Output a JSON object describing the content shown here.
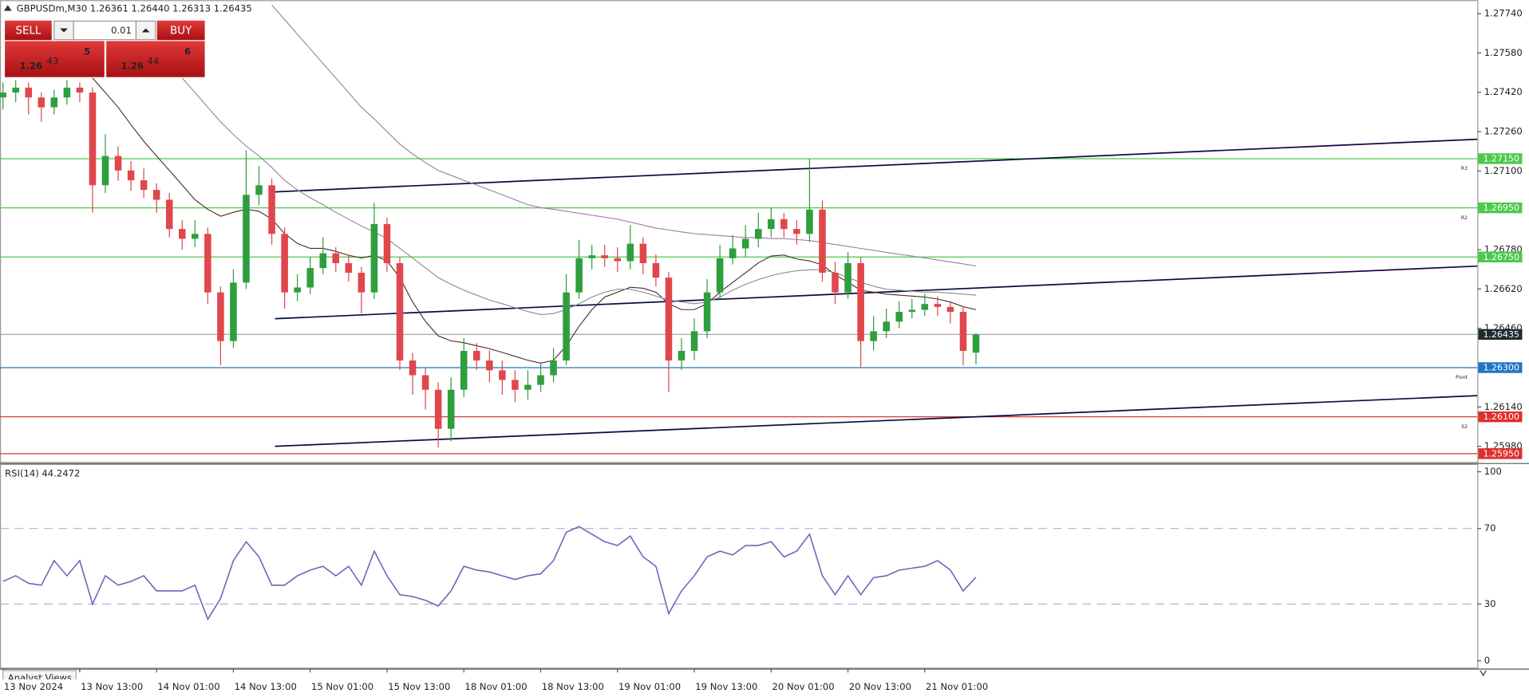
{
  "chart_data": [
    {
      "type": "candlestick",
      "title": "GBPUSDm,M30  1.26361 1.26440 1.26313 1.26435",
      "categories": [
        "13 Nov 2024",
        null,
        null,
        null,
        null,
        null,
        "13 Nov 13:00",
        null,
        null,
        null,
        null,
        null,
        "14 Nov 01:00",
        null,
        null,
        null,
        null,
        null,
        "14 Nov 13:00",
        null,
        null,
        null,
        null,
        null,
        "15 Nov 01:00",
        null,
        null,
        null,
        null,
        null,
        "15 Nov 13:00",
        null,
        null,
        null,
        null,
        null,
        "18 Nov 01:00",
        null,
        null,
        null,
        null,
        null,
        "18 Nov 13:00",
        null,
        null,
        null,
        null,
        null,
        "19 Nov 01:00",
        null,
        null,
        null,
        null,
        null,
        "19 Nov 13:00",
        null,
        null,
        null,
        null,
        null,
        "20 Nov 01:00",
        null,
        null,
        null,
        null,
        null,
        "20 Nov 13:00",
        null,
        null,
        null,
        null,
        null,
        "21 Nov 01:00",
        null,
        null,
        null,
        null
      ],
      "open": [
        1.27399,
        1.27419,
        1.27439,
        1.27399,
        1.27359,
        1.27399,
        1.27439,
        1.27419,
        1.27042,
        1.27161,
        1.27102,
        1.27062,
        1.27023,
        1.26983,
        1.26864,
        1.26824,
        1.26844,
        1.26606,
        1.26408,
        1.26646,
        1.27003,
        1.27042,
        1.26844,
        1.26606,
        1.26626,
        1.26705,
        1.26765,
        1.26725,
        1.26686,
        1.26606,
        1.26884,
        1.26725,
        1.26329,
        1.26269,
        1.2621,
        1.26051,
        1.2621,
        1.26368,
        1.26329,
        1.26289,
        1.2625,
        1.2621,
        1.2623,
        1.26269,
        1.26329,
        1.26606,
        1.26745,
        1.26757,
        1.26745,
        1.26733,
        1.26804,
        1.26725,
        1.26666,
        1.26329,
        1.26368,
        1.26448,
        1.26606,
        1.26745,
        1.26785,
        1.26824,
        1.26864,
        1.26904,
        1.26864,
        1.26844,
        1.26943,
        1.26686,
        1.26606,
        1.26725,
        1.26408,
        1.26448,
        1.26487,
        1.26527,
        1.26535,
        1.26559,
        1.26547,
        1.26527,
        1.26361
      ],
      "high": [
        1.2746,
        1.2747,
        1.2746,
        1.2742,
        1.2743,
        1.2747,
        1.2746,
        1.2744,
        1.2725,
        1.272,
        1.2714,
        1.2711,
        1.2705,
        1.2701,
        1.269,
        1.269,
        1.2687,
        1.2663,
        1.267,
        1.27185,
        1.2712,
        1.2707,
        1.2687,
        1.2668,
        1.2675,
        1.2683,
        1.2679,
        1.2676,
        1.2671,
        1.2697,
        1.2691,
        1.2675,
        1.2636,
        1.263,
        1.2624,
        1.2626,
        1.2642,
        1.264,
        1.2637,
        1.2633,
        1.2629,
        1.2629,
        1.2632,
        1.2638,
        1.2668,
        1.2682,
        1.268,
        1.268,
        1.2679,
        1.2688,
        1.2683,
        1.2676,
        1.2669,
        1.2642,
        1.265,
        1.2666,
        1.268,
        1.2684,
        1.2688,
        1.2693,
        1.2695,
        1.2693,
        1.269,
        1.2715,
        1.2698,
        1.2673,
        1.2677,
        1.2675,
        1.2651,
        1.2654,
        1.2657,
        1.2658,
        1.266,
        1.2659,
        1.2657,
        1.2655,
        1.2644
      ],
      "low": [
        1.2735,
        1.2738,
        1.2733,
        1.273,
        1.2733,
        1.2737,
        1.2738,
        1.2693,
        1.2701,
        1.2706,
        1.2702,
        1.2699,
        1.2693,
        1.2683,
        1.2678,
        1.2679,
        1.2656,
        1.2631,
        1.2638,
        1.2662,
        1.2696,
        1.268,
        1.2654,
        1.2657,
        1.266,
        1.2668,
        1.2669,
        1.2665,
        1.2652,
        1.2658,
        1.2669,
        1.2629,
        1.2619,
        1.2613,
        1.25975,
        1.26,
        1.2618,
        1.2629,
        1.2624,
        1.2619,
        1.2616,
        1.2617,
        1.262,
        1.2624,
        1.2631,
        1.2658,
        1.267,
        1.2671,
        1.2669,
        1.267,
        1.2668,
        1.2663,
        1.262,
        1.2629,
        1.2633,
        1.2642,
        1.2658,
        1.2672,
        1.2675,
        1.2679,
        1.2683,
        1.2683,
        1.268,
        1.2681,
        1.2665,
        1.2656,
        1.2658,
        1.263,
        1.2637,
        1.2642,
        1.2646,
        1.265,
        1.2651,
        1.2651,
        1.2648,
        1.2631,
        1.26313
      ],
      "close": [
        1.27419,
        1.27439,
        1.27399,
        1.27359,
        1.27399,
        1.27439,
        1.27419,
        1.27042,
        1.27161,
        1.27102,
        1.27062,
        1.27023,
        1.26983,
        1.26864,
        1.26824,
        1.26844,
        1.26606,
        1.26408,
        1.26646,
        1.27003,
        1.27042,
        1.26844,
        1.26606,
        1.26626,
        1.26705,
        1.26765,
        1.26725,
        1.26686,
        1.26606,
        1.26884,
        1.26725,
        1.26329,
        1.26269,
        1.2621,
        1.26051,
        1.2621,
        1.26368,
        1.26329,
        1.26289,
        1.2625,
        1.2621,
        1.2623,
        1.26269,
        1.26329,
        1.26606,
        1.26745,
        1.26757,
        1.26745,
        1.26733,
        1.26804,
        1.26725,
        1.26666,
        1.26329,
        1.26368,
        1.26448,
        1.26606,
        1.26745,
        1.26785,
        1.26824,
        1.26864,
        1.26904,
        1.26864,
        1.26844,
        1.26943,
        1.26686,
        1.26606,
        1.26725,
        1.26408,
        1.26448,
        1.26487,
        1.26527,
        1.26535,
        1.26559,
        1.26547,
        1.26527,
        1.26368,
        1.26435
      ],
      "up_color": "#2e9e3e",
      "down_color": "#e0474c",
      "overlays": [
        {
          "color": "#4a2a22",
          "values": [
            null,
            null,
            null,
            null,
            null,
            null,
            null,
            1.27478,
            1.27419,
            1.27359,
            1.27288,
            1.27221,
            1.27161,
            1.27102,
            1.27043,
            1.26983,
            1.26944,
            1.26916,
            1.26932,
            1.26944,
            1.26936,
            1.26904,
            1.26845,
            1.26805,
            1.26785,
            1.26785,
            1.26773,
            1.26757,
            1.26746,
            1.26757,
            1.26734,
            1.26666,
            1.26567,
            1.26488,
            1.26429,
            1.26409,
            1.26401,
            1.26389,
            1.26377,
            1.26362,
            1.26346,
            1.2633,
            1.26318,
            1.2633,
            1.26389,
            1.26468,
            1.26536,
            1.26587,
            1.26607,
            1.26627,
            1.26623,
            1.26607,
            1.2656,
            1.26536,
            1.26536,
            1.2656,
            1.26607,
            1.26647,
            1.26686,
            1.26726,
            1.26754,
            1.26758,
            1.26742,
            1.26734,
            1.26718,
            1.26678,
            1.26647,
            1.26615,
            1.26607,
            1.26599,
            1.26595,
            1.26591,
            1.26587,
            1.26579,
            1.26567,
            1.26548,
            1.26536
          ]
        },
        {
          "color": "#8a8a8a",
          "values": [
            null,
            null,
            null,
            null,
            null,
            null,
            null,
            null,
            null,
            null,
            null,
            null,
            null,
            null,
            1.27478,
            1.27419,
            1.27359,
            1.273,
            1.27248,
            1.27201,
            1.27161,
            1.27114,
            1.27062,
            1.27023,
            1.26991,
            1.26963,
            1.26932,
            1.26904,
            1.26876,
            1.26852,
            1.26825,
            1.26785,
            1.26746,
            1.26706,
            1.26666,
            1.26639,
            1.26615,
            1.26595,
            1.26575,
            1.2656,
            1.26544,
            1.26528,
            1.26516,
            1.2652,
            1.26536,
            1.2656,
            1.26587,
            1.26607,
            1.26619,
            1.26619,
            1.26607,
            1.26591,
            1.26575,
            1.26567,
            1.2656,
            1.26567,
            1.26587,
            1.26615,
            1.26639,
            1.26658,
            1.26674,
            1.26686,
            1.26694,
            1.26698,
            1.26698,
            1.26686,
            1.26666,
            1.26647,
            1.26631,
            1.26619,
            1.26615,
            1.26611,
            1.26607,
            1.26607,
            1.26603,
            1.26599,
            1.26595
          ]
        },
        {
          "color": "#9c7c9c",
          "values": [
            null,
            null,
            null,
            null,
            null,
            null,
            null,
            null,
            null,
            null,
            null,
            null,
            null,
            null,
            null,
            null,
            null,
            null,
            null,
            null,
            null,
            1.27775,
            1.27716,
            1.27656,
            1.27597,
            1.27537,
            1.27478,
            1.27419,
            1.27359,
            1.27312,
            1.2726,
            1.27209,
            1.27169,
            1.27134,
            1.27102,
            1.27082,
            1.27062,
            1.27043,
            1.27023,
            1.27003,
            1.26983,
            1.26963,
            1.26951,
            1.26944,
            1.26936,
            1.26928,
            1.2692,
            1.26912,
            1.26904,
            1.26892,
            1.2688,
            1.26868,
            1.2686,
            1.26852,
            1.26845,
            1.26841,
            1.26837,
            1.26833,
            1.26829,
            1.26829,
            1.26825,
            1.26825,
            1.26821,
            1.26817,
            1.26809,
            1.26801,
            1.26793,
            1.26785,
            1.26777,
            1.26769,
            1.26761,
            1.26754,
            1.26746,
            1.26738,
            1.2673,
            1.26722,
            1.26714
          ]
        }
      ],
      "levels": [
        {
          "value": 1.2715,
          "label": "1.27150",
          "tag": "R3",
          "color": "#4cc94c",
          "fill": "#4cc94c"
        },
        {
          "value": 1.2695,
          "label": "1.26950",
          "tag": "R2",
          "color": "#4cc94c",
          "fill": "#4cc94c"
        },
        {
          "value": 1.2675,
          "label": "1.26750",
          "color": "#4cc94c",
          "fill": "#4cc94c"
        },
        {
          "value": 1.26435,
          "label": "1.26435",
          "color": "#a8a8a8",
          "fill": "#1f2a30"
        },
        {
          "value": 1.263,
          "label": "1.26300",
          "tag": "Pivot",
          "color": "#1f74c4",
          "fill": "#1f74c4"
        },
        {
          "value": 1.261,
          "label": "1.26100",
          "tag": "S2",
          "color": "#d03a3a",
          "fill": "#e0302e"
        },
        {
          "value": 1.2595,
          "label": "1.25950",
          "color": "#d03a3a",
          "fill": "#e0302e"
        }
      ],
      "trendlines": [
        {
          "values": [
            1.27015,
            1.27229
          ]
        },
        {
          "values": [
            1.26499,
            1.26713
          ]
        },
        {
          "values": [
            1.2598,
            1.26186
          ]
        }
      ],
      "trendline_color": "#0a0a40",
      "ylim": [
        1.25916,
        1.27795
      ],
      "yticks": [
        {
          "value": 1.2774,
          "label": "1.27740"
        },
        {
          "value": 1.2758,
          "label": "1.27580"
        },
        {
          "value": 1.2742,
          "label": "1.27420"
        },
        {
          "value": 1.2726,
          "label": "1.27260"
        },
        {
          "value": 1.271,
          "label": "1.27100"
        },
        {
          "value": 1.2678,
          "label": "1.26780"
        },
        {
          "value": 1.2662,
          "label": "1.26620"
        },
        {
          "value": 1.2646,
          "label": "1.26460"
        },
        {
          "value": 1.2614,
          "label": "1.26140"
        },
        {
          "value": 1.2598,
          "label": "1.25980"
        }
      ],
      "grid": false
    },
    {
      "type": "line",
      "title": "RSI(14) 44.2472",
      "values": [
        42,
        45,
        41,
        40,
        53,
        45,
        53,
        30,
        45,
        40,
        42,
        45,
        37,
        37,
        37,
        40,
        22,
        33,
        53,
        63,
        55,
        40,
        40,
        45,
        48,
        50,
        45,
        50,
        40,
        58,
        45,
        35,
        34,
        32,
        29,
        37,
        50,
        48,
        47,
        45,
        43,
        45,
        46,
        53,
        68,
        71,
        67,
        63,
        61,
        66,
        55,
        50,
        25,
        37,
        45,
        55,
        58,
        56,
        61,
        61,
        63,
        55,
        58,
        67,
        45,
        35,
        45,
        35,
        44,
        45,
        48,
        49,
        50,
        53,
        48,
        37,
        44.2472
      ],
      "color": "#7b5eb8",
      "ylim": [
        -3.6,
        103.6
      ],
      "yticks": [
        100,
        70,
        30,
        0
      ],
      "levels": [
        70,
        30
      ],
      "level_color": "#c9a6c9"
    }
  ],
  "trade_panel": {
    "sell": "SELL",
    "lot": "0.01",
    "buy": "BUY",
    "bid": {
      "big": "1.26",
      "pips": "43",
      "point": "5"
    },
    "ask": {
      "big": "1.26",
      "pips": "44",
      "point": "6"
    }
  },
  "footer_tab": "Analyst Views"
}
